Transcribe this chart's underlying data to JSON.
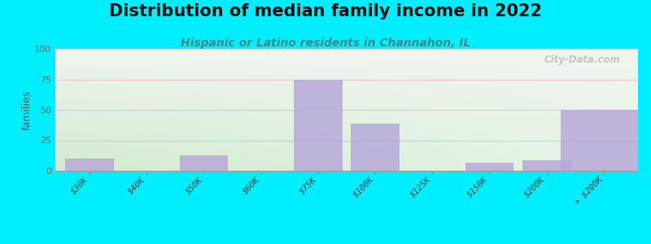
{
  "title": "Distribution of median family income in 2022",
  "subtitle": "Hispanic or Latino residents in Channahon, IL",
  "categories": [
    "$30K",
    "$40K",
    "$50K",
    "$60K",
    "$75K",
    "$100K",
    "$125K",
    "$150K",
    "$200K",
    "> $200K"
  ],
  "values": [
    10,
    0,
    13,
    0,
    75,
    39,
    0,
    7,
    9,
    50
  ],
  "bar_color": "#b8a8d8",
  "bar_alpha": 0.85,
  "ylabel": "families",
  "ylim": [
    0,
    100
  ],
  "yticks": [
    0,
    25,
    50,
    75,
    100
  ],
  "background_outer": "#00eeff",
  "background_inner_top_left": "#d6ead6",
  "background_inner_top_right": "#eef5ee",
  "background_inner_bottom": "#f8faf5",
  "grid_color": "#e0b0b0",
  "grid_alpha": 0.6,
  "title_fontsize": 15,
  "subtitle_fontsize": 10,
  "subtitle_color": "#448888",
  "watermark": "City-Data.com",
  "tick_positions": [
    0,
    1,
    2,
    3,
    4,
    5,
    6,
    7,
    8,
    9
  ],
  "bar_widths": [
    0.85,
    0.85,
    0.85,
    0.85,
    0.85,
    0.85,
    0.85,
    0.85,
    0.85,
    0.85
  ]
}
